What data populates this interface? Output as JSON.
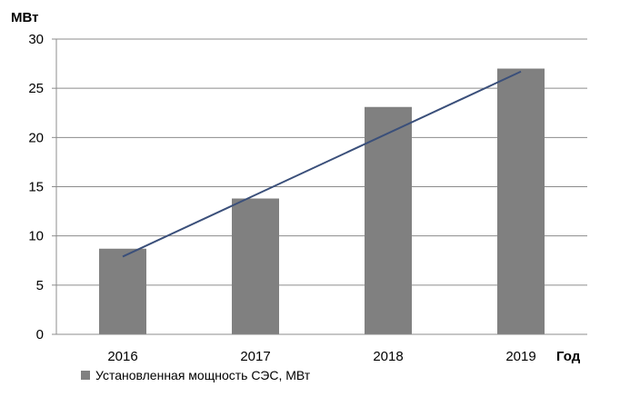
{
  "chart_data": {
    "type": "bar",
    "ylabel": "МВт",
    "xlabel": "Год",
    "categories": [
      "2016",
      "2017",
      "2018",
      "2019"
    ],
    "series": [
      {
        "name": "Установленная мощность СЭС, МВт",
        "values": [
          8.7,
          13.8,
          23.1,
          27.0
        ],
        "color": "#808080"
      }
    ],
    "trendline": {
      "type": "linear",
      "start": {
        "x": "2016",
        "y": 7.9
      },
      "end": {
        "x": "2019",
        "y": 26.7
      },
      "color": "#3a4f7a"
    },
    "ylim": [
      0,
      30
    ],
    "yticks": [
      0,
      5,
      10,
      15,
      20,
      25,
      30
    ],
    "grid": true,
    "gridlines": "horizontal",
    "legend": "bottom-left"
  }
}
